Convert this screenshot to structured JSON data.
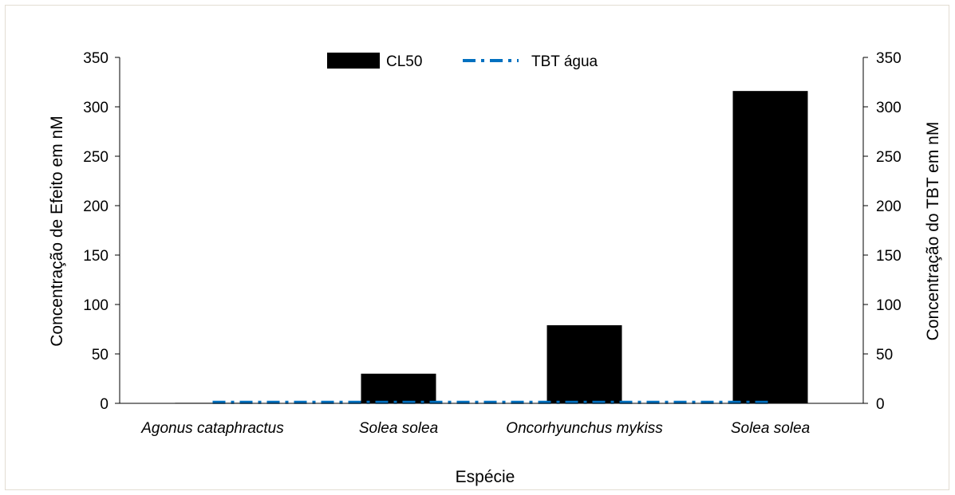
{
  "chart_data": {
    "type": "bar",
    "title": "",
    "xlabel": "Espécie",
    "ylabel": "Concentração de Efeito em nM",
    "y2label": "Concentração do TBT em nM",
    "categories": [
      "Agonus cataphractus",
      "Solea solea",
      "Oncorhyunchus mykiss",
      "Solea solea"
    ],
    "series": [
      {
        "name": "CL50",
        "kind": "bar",
        "color": "#000000",
        "values": [
          0.5,
          30,
          79,
          316
        ]
      },
      {
        "name": "TBT água",
        "kind": "line",
        "style": "dash-dot",
        "color": "#0070c0",
        "values": [
          1,
          1,
          1,
          1
        ]
      }
    ],
    "ylim": [
      0,
      350
    ],
    "y2lim": [
      0,
      350
    ],
    "yticks": [
      "0",
      "50",
      "100",
      "150",
      "200",
      "250",
      "300",
      "350"
    ],
    "legend_position": "top-center",
    "grid": false
  }
}
